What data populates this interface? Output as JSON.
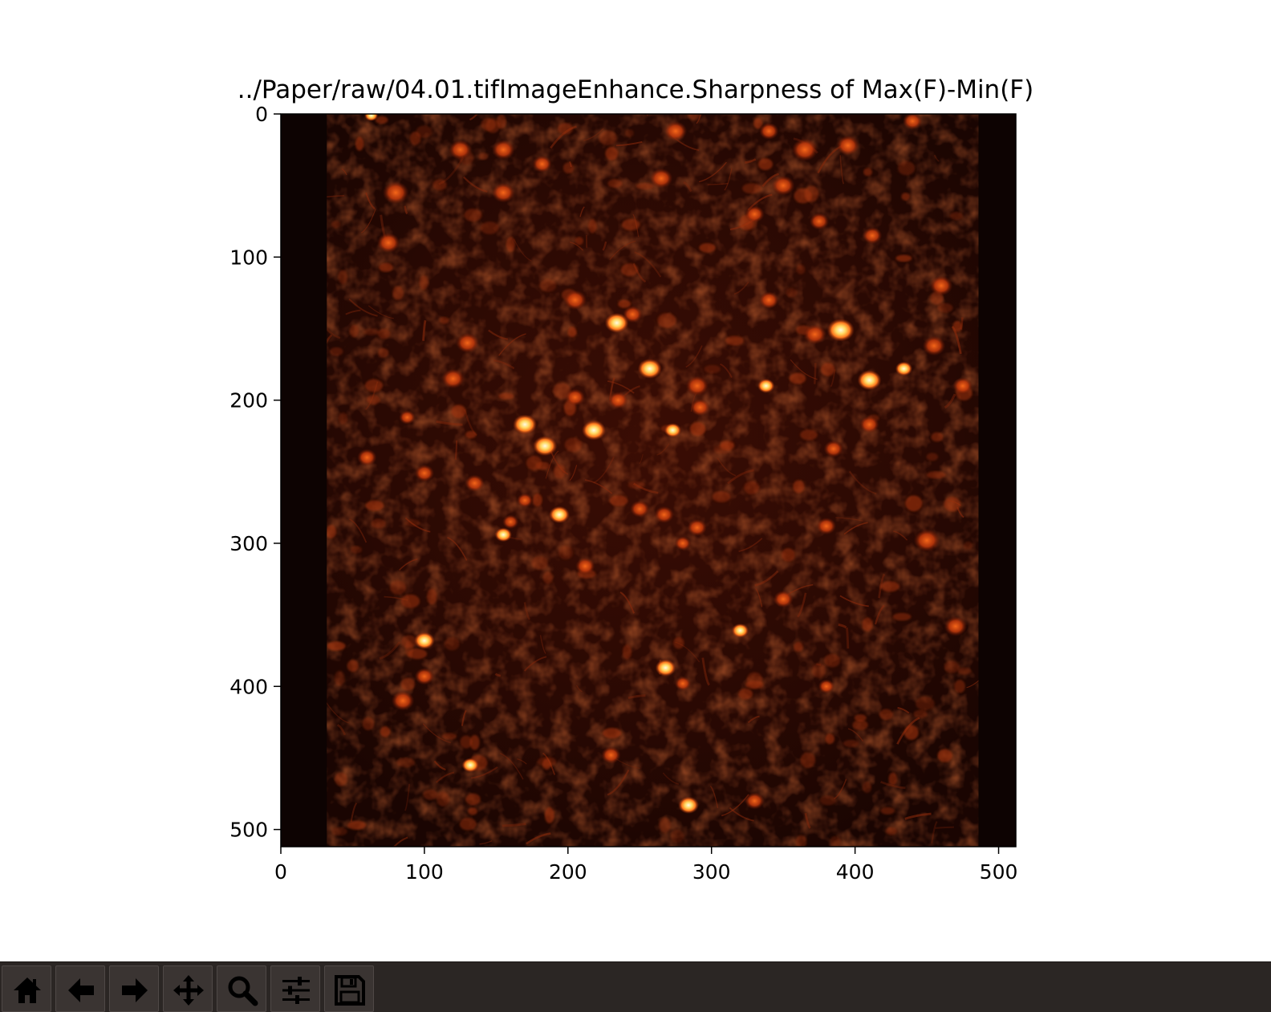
{
  "window": {
    "toolbar": {
      "buttons": [
        {
          "name": "home-button",
          "icon": "home-icon"
        },
        {
          "name": "back-button",
          "icon": "arrow-left-icon"
        },
        {
          "name": "forward-button",
          "icon": "arrow-right-icon"
        },
        {
          "name": "pan-button",
          "icon": "move-icon"
        },
        {
          "name": "zoom-button",
          "icon": "magnifier-icon"
        },
        {
          "name": "configure-subplots-button",
          "icon": "sliders-icon"
        },
        {
          "name": "save-button",
          "icon": "floppy-disk-icon"
        }
      ]
    }
  },
  "chart_data": {
    "type": "heatmap",
    "title": "../Paper/raw/04.01.tifImageEnhance.Sharpness of Max(F)-Min(F)",
    "xlabel": "",
    "ylabel": "",
    "xlim": [
      0,
      512
    ],
    "ylim": [
      512,
      0
    ],
    "xticks": [
      0,
      100,
      200,
      300,
      400,
      500
    ],
    "yticks": [
      0,
      100,
      200,
      300,
      400,
      500
    ],
    "xtick_labels": [
      "0",
      "100",
      "200",
      "300",
      "400",
      "500"
    ],
    "ytick_labels": [
      "0",
      "100",
      "200",
      "300",
      "400",
      "500"
    ],
    "colormap": "hot",
    "colors": {
      "background": "#1c0602",
      "mid": "#7a1a08",
      "bright": "#ff7a20",
      "peak": "#fff4c0",
      "edge": "#0d0302"
    },
    "image_content": "calcium imaging field of fluorescent neurons",
    "dark_border_columns": [
      [
        0,
        32
      ],
      [
        486,
        512
      ]
    ],
    "bright_cells": [
      {
        "x": 170,
        "y": 217,
        "r": 7
      },
      {
        "x": 184,
        "y": 232,
        "r": 7
      },
      {
        "x": 194,
        "y": 280,
        "r": 6
      },
      {
        "x": 100,
        "y": 368,
        "r": 6
      },
      {
        "x": 390,
        "y": 151,
        "r": 8
      },
      {
        "x": 410,
        "y": 186,
        "r": 7
      },
      {
        "x": 434,
        "y": 178,
        "r": 5
      },
      {
        "x": 218,
        "y": 221,
        "r": 7
      },
      {
        "x": 234,
        "y": 146,
        "r": 7
      },
      {
        "x": 155,
        "y": 294,
        "r": 5
      },
      {
        "x": 268,
        "y": 387,
        "r": 6
      },
      {
        "x": 320,
        "y": 361,
        "r": 5
      },
      {
        "x": 284,
        "y": 483,
        "r": 6
      },
      {
        "x": 132,
        "y": 455,
        "r": 5
      },
      {
        "x": 63,
        "y": 1,
        "r": 4
      },
      {
        "x": 257,
        "y": 178,
        "r": 7
      },
      {
        "x": 338,
        "y": 190,
        "r": 5
      },
      {
        "x": 273,
        "y": 221,
        "r": 5
      }
    ],
    "cells": [
      {
        "x": 125,
        "y": 25,
        "r": 7
      },
      {
        "x": 155,
        "y": 25,
        "r": 7
      },
      {
        "x": 182,
        "y": 35,
        "r": 6
      },
      {
        "x": 275,
        "y": 12,
        "r": 7
      },
      {
        "x": 340,
        "y": 12,
        "r": 6
      },
      {
        "x": 365,
        "y": 25,
        "r": 8
      },
      {
        "x": 395,
        "y": 22,
        "r": 7
      },
      {
        "x": 440,
        "y": 5,
        "r": 6
      },
      {
        "x": 80,
        "y": 55,
        "r": 8
      },
      {
        "x": 155,
        "y": 55,
        "r": 7
      },
      {
        "x": 265,
        "y": 45,
        "r": 7
      },
      {
        "x": 350,
        "y": 50,
        "r": 7
      },
      {
        "x": 330,
        "y": 70,
        "r": 6
      },
      {
        "x": 375,
        "y": 75,
        "r": 6
      },
      {
        "x": 412,
        "y": 85,
        "r": 6
      },
      {
        "x": 75,
        "y": 90,
        "r": 7
      },
      {
        "x": 460,
        "y": 120,
        "r": 7
      },
      {
        "x": 205,
        "y": 130,
        "r": 7
      },
      {
        "x": 340,
        "y": 130,
        "r": 6
      },
      {
        "x": 372,
        "y": 154,
        "r": 7
      },
      {
        "x": 130,
        "y": 160,
        "r": 7
      },
      {
        "x": 245,
        "y": 140,
        "r": 6
      },
      {
        "x": 455,
        "y": 162,
        "r": 7
      },
      {
        "x": 120,
        "y": 185,
        "r": 7
      },
      {
        "x": 205,
        "y": 198,
        "r": 6
      },
      {
        "x": 235,
        "y": 200,
        "r": 6
      },
      {
        "x": 290,
        "y": 190,
        "r": 7
      },
      {
        "x": 292,
        "y": 205,
        "r": 6
      },
      {
        "x": 475,
        "y": 190,
        "r": 6
      },
      {
        "x": 88,
        "y": 212,
        "r": 5
      },
      {
        "x": 410,
        "y": 217,
        "r": 6
      },
      {
        "x": 385,
        "y": 234,
        "r": 6
      },
      {
        "x": 60,
        "y": 240,
        "r": 6
      },
      {
        "x": 100,
        "y": 251,
        "r": 6
      },
      {
        "x": 135,
        "y": 258,
        "r": 6
      },
      {
        "x": 170,
        "y": 270,
        "r": 5
      },
      {
        "x": 250,
        "y": 276,
        "r": 6
      },
      {
        "x": 267,
        "y": 280,
        "r": 6
      },
      {
        "x": 290,
        "y": 289,
        "r": 6
      },
      {
        "x": 380,
        "y": 288,
        "r": 6
      },
      {
        "x": 450,
        "y": 298,
        "r": 8
      },
      {
        "x": 212,
        "y": 316,
        "r": 6
      },
      {
        "x": 280,
        "y": 300,
        "r": 5
      },
      {
        "x": 350,
        "y": 339,
        "r": 6
      },
      {
        "x": 470,
        "y": 358,
        "r": 7
      },
      {
        "x": 100,
        "y": 393,
        "r": 6
      },
      {
        "x": 85,
        "y": 410,
        "r": 7
      },
      {
        "x": 280,
        "y": 398,
        "r": 5
      },
      {
        "x": 380,
        "y": 400,
        "r": 5
      },
      {
        "x": 230,
        "y": 448,
        "r": 6
      },
      {
        "x": 330,
        "y": 480,
        "r": 6
      },
      {
        "x": 160,
        "y": 285,
        "r": 5
      }
    ]
  }
}
